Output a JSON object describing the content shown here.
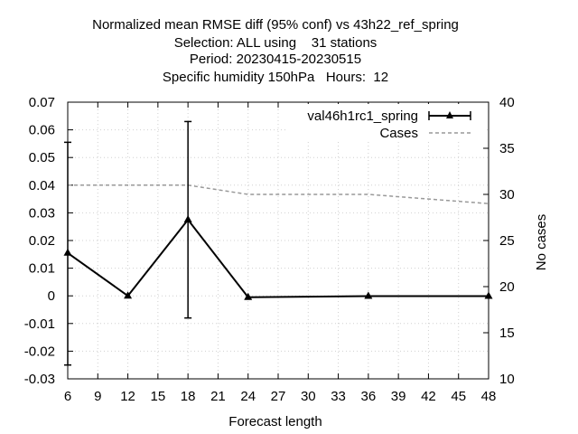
{
  "chart_data": {
    "type": "line",
    "title_lines": [
      "Normalized mean RMSE diff (95% conf) vs 43h22_ref_spring",
      "Selection: ALL using    31 stations",
      "Period: 20230415-20230515",
      "Specific humidity 150hPa   Hours:  12"
    ],
    "xlabel": "Forecast length",
    "ylabel": "",
    "y2label": "No cases",
    "xlim": [
      6,
      48
    ],
    "ylim": [
      -0.03,
      0.07
    ],
    "y2lim": [
      10,
      40
    ],
    "x_ticks": [
      6,
      9,
      12,
      15,
      18,
      21,
      24,
      27,
      30,
      33,
      36,
      39,
      42,
      45,
      48
    ],
    "y_ticks": [
      -0.03,
      -0.02,
      -0.01,
      0,
      0.01,
      0.02,
      0.03,
      0.04,
      0.05,
      0.06,
      0.07
    ],
    "y_tick_labels": [
      "-0.03",
      "-0.02",
      "-0.01",
      "0",
      "0.01",
      "0.02",
      "0.03",
      "0.04",
      "0.05",
      "0.06",
      "0.07"
    ],
    "y2_ticks": [
      10,
      15,
      20,
      25,
      30,
      35,
      40
    ],
    "grid": true,
    "legend_position": "top-right",
    "series": [
      {
        "name": "val46h1rc1_spring",
        "color": "#000000",
        "x": [
          6,
          12,
          18,
          24,
          36,
          48
        ],
        "y": [
          0.0155,
          0.0,
          0.0275,
          -0.0005,
          -0.0001,
          -0.0001
        ],
        "err_low": [
          -0.025,
          null,
          -0.008,
          null,
          null,
          null
        ],
        "err_high": [
          0.0555,
          null,
          0.063,
          null,
          null,
          null
        ]
      },
      {
        "name": "Cases",
        "color": "#999999",
        "axis": "y2",
        "x": [
          6,
          12,
          18,
          24,
          30,
          36,
          42,
          48
        ],
        "y": [
          31,
          31,
          31,
          30,
          30,
          30,
          29.5,
          29
        ]
      }
    ]
  }
}
